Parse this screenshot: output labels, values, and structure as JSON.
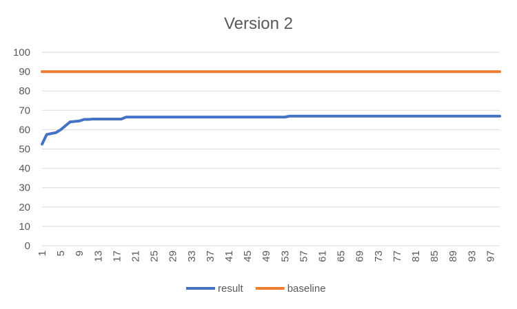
{
  "chart_data": {
    "type": "line",
    "title": "Version 2",
    "xlabel": "",
    "ylabel": "",
    "ylim": [
      0,
      100
    ],
    "y_ticks": [
      0,
      10,
      20,
      30,
      40,
      50,
      60,
      70,
      80,
      90,
      100
    ],
    "x_range": [
      1,
      99
    ],
    "x_tick_labels": [
      1,
      5,
      9,
      13,
      17,
      21,
      25,
      29,
      33,
      37,
      41,
      45,
      49,
      53,
      57,
      61,
      65,
      69,
      73,
      77,
      81,
      85,
      89,
      93,
      97
    ],
    "grid": "horizontal",
    "legend_position": "bottom",
    "series": [
      {
        "name": "result",
        "color": "#4472c4",
        "points": [
          [
            1,
            52.5
          ],
          [
            2,
            57.5
          ],
          [
            4,
            58.5
          ],
          [
            5,
            60
          ],
          [
            7,
            64
          ],
          [
            9,
            64.5
          ],
          [
            10,
            65.3
          ],
          [
            11,
            65.3
          ],
          [
            12,
            65.5
          ],
          [
            18,
            65.5
          ],
          [
            19,
            66.5
          ],
          [
            53,
            66.5
          ],
          [
            54,
            67
          ],
          [
            99,
            67
          ]
        ]
      },
      {
        "name": "baseline",
        "color": "#ed7d31",
        "points": [
          [
            1,
            90
          ],
          [
            99,
            90
          ]
        ]
      }
    ]
  }
}
